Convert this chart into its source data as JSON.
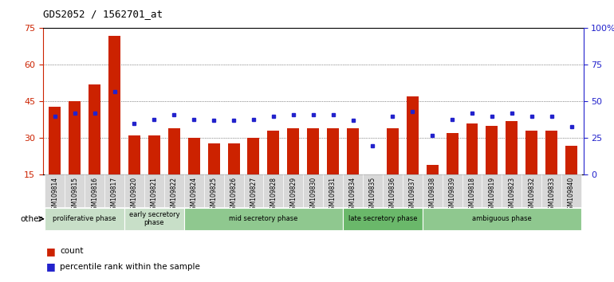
{
  "title": "GDS2052 / 1562701_at",
  "samples": [
    "GSM109814",
    "GSM109815",
    "GSM109816",
    "GSM109817",
    "GSM109820",
    "GSM109821",
    "GSM109822",
    "GSM109824",
    "GSM109825",
    "GSM109826",
    "GSM109827",
    "GSM109828",
    "GSM109829",
    "GSM109830",
    "GSM109831",
    "GSM109834",
    "GSM109835",
    "GSM109836",
    "GSM109837",
    "GSM109838",
    "GSM109839",
    "GSM109818",
    "GSM109819",
    "GSM109823",
    "GSM109832",
    "GSM109833",
    "GSM109840"
  ],
  "count_values": [
    43,
    45,
    52,
    72,
    31,
    31,
    34,
    30,
    28,
    28,
    30,
    33,
    34,
    34,
    34,
    34,
    15,
    34,
    47,
    19,
    32,
    36,
    35,
    37,
    33,
    33,
    27
  ],
  "percentile_values": [
    40,
    42,
    42,
    57,
    35,
    38,
    41,
    38,
    37,
    37,
    38,
    40,
    41,
    41,
    41,
    37,
    20,
    40,
    43,
    27,
    38,
    42,
    40,
    42,
    40,
    40,
    33
  ],
  "phases": [
    {
      "label": "proliferative phase",
      "start": 0,
      "end": 4,
      "color": "#c8dfc8"
    },
    {
      "label": "early secretory\nphase",
      "start": 4,
      "end": 7,
      "color": "#c8dfc8"
    },
    {
      "label": "mid secretory phase",
      "start": 7,
      "end": 15,
      "color": "#8fc88f"
    },
    {
      "label": "late secretory phase",
      "start": 15,
      "end": 19,
      "color": "#6ab86a"
    },
    {
      "label": "ambiguous phase",
      "start": 19,
      "end": 27,
      "color": "#8fc88f"
    }
  ],
  "ylim_left": [
    15,
    75
  ],
  "ylim_right": [
    0,
    100
  ],
  "yticks_left": [
    15,
    30,
    45,
    60,
    75
  ],
  "yticks_right": [
    0,
    25,
    50,
    75,
    100
  ],
  "bar_color": "#cc2200",
  "dot_color": "#2222cc",
  "left_axis_color": "#cc2200",
  "right_axis_color": "#2222cc",
  "grid_color": "#333333",
  "bar_width": 0.6
}
